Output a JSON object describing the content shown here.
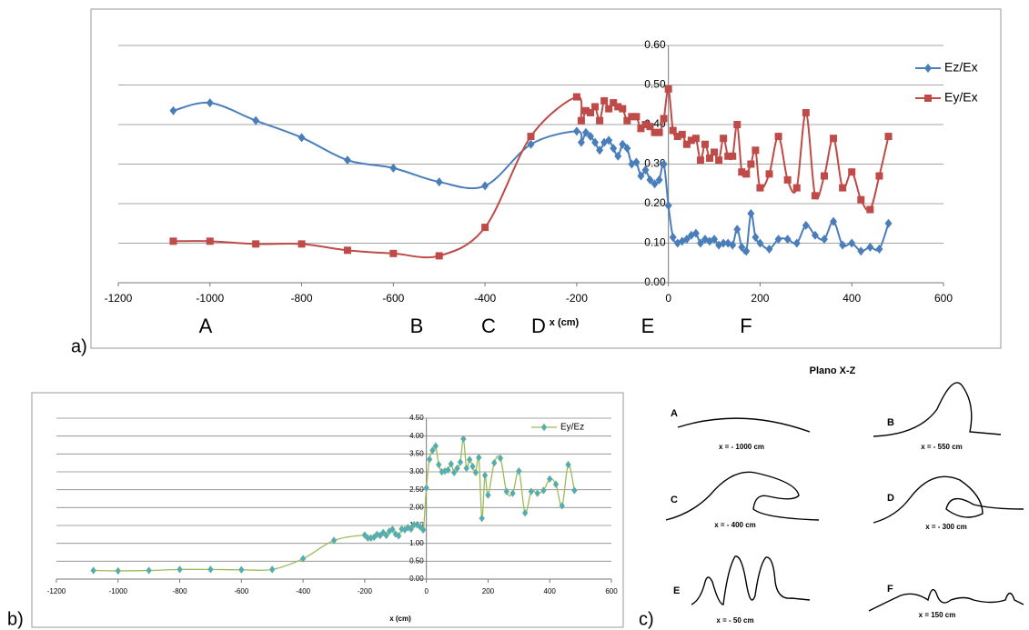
{
  "chart_data": [
    {
      "type": "line",
      "x_label": "x (cm)",
      "x": [
        -1080,
        -1000,
        -900,
        -800,
        -700,
        -600,
        -500,
        -400,
        -300,
        -200,
        -190,
        -180,
        -170,
        -160,
        -150,
        -140,
        -130,
        -120,
        -110,
        -100,
        -90,
        -80,
        -70,
        -60,
        -50,
        -40,
        -30,
        -20,
        -10,
        0,
        10,
        20,
        30,
        40,
        50,
        60,
        70,
        80,
        90,
        100,
        110,
        120,
        130,
        140,
        150,
        160,
        170,
        180,
        190,
        200,
        220,
        240,
        260,
        280,
        300,
        320,
        340,
        360,
        380,
        400,
        420,
        440,
        460,
        480
      ],
      "series": [
        {
          "name": "Ez/Ex",
          "color": "#4a7ebb",
          "marker": "diamond",
          "values": [
            0.435,
            0.455,
            0.41,
            0.367,
            0.31,
            0.29,
            0.255,
            0.245,
            0.35,
            0.383,
            0.355,
            0.38,
            0.37,
            0.355,
            0.335,
            0.355,
            0.36,
            0.34,
            0.32,
            0.35,
            0.34,
            0.3,
            0.305,
            0.27,
            0.285,
            0.26,
            0.25,
            0.26,
            0.3,
            0.195,
            0.115,
            0.1,
            0.105,
            0.11,
            0.12,
            0.125,
            0.1,
            0.11,
            0.105,
            0.11,
            0.095,
            0.1,
            0.1,
            0.095,
            0.135,
            0.09,
            0.08,
            0.175,
            0.115,
            0.1,
            0.085,
            0.11,
            0.11,
            0.1,
            0.145,
            0.12,
            0.11,
            0.155,
            0.095,
            0.1,
            0.08,
            0.09,
            0.085,
            0.15
          ]
        },
        {
          "name": "Ey/Ex",
          "color": "#be4b48",
          "marker": "square",
          "values": [
            0.105,
            0.105,
            0.098,
            0.098,
            0.082,
            0.074,
            0.068,
            0.14,
            0.37,
            0.47,
            0.41,
            0.435,
            0.43,
            0.445,
            0.41,
            0.46,
            0.44,
            0.455,
            0.445,
            0.44,
            0.41,
            0.42,
            0.42,
            0.39,
            0.4,
            0.395,
            0.38,
            0.38,
            0.415,
            0.49,
            0.385,
            0.37,
            0.375,
            0.35,
            0.36,
            0.365,
            0.31,
            0.35,
            0.315,
            0.33,
            0.31,
            0.365,
            0.32,
            0.32,
            0.4,
            0.28,
            0.275,
            0.3,
            0.335,
            0.24,
            0.275,
            0.37,
            0.26,
            0.24,
            0.43,
            0.22,
            0.27,
            0.365,
            0.24,
            0.28,
            0.21,
            0.185,
            0.27,
            0.37
          ]
        }
      ],
      "xlim": [
        -1200,
        600
      ],
      "xticks": [
        -1200,
        -1000,
        -800,
        -600,
        -400,
        -200,
        0,
        200,
        400,
        600
      ],
      "ylim": [
        0,
        0.6
      ],
      "yticks": [
        {
          "value": 0,
          "label": "0.00"
        },
        {
          "value": 0.1,
          "label": "0.10"
        },
        {
          "value": 0.2,
          "label": "0.20"
        },
        {
          "value": 0.3,
          "label": "0.30"
        },
        {
          "value": 0.4,
          "label": "0.40"
        },
        {
          "value": 0.5,
          "label": "0.50"
        },
        {
          "value": 0.6,
          "label": "0.60"
        }
      ],
      "grid": true,
      "legend": "right",
      "annotations": [
        "A",
        "B",
        "C",
        "D",
        "E",
        "F"
      ]
    },
    {
      "type": "line",
      "x_label": "x (cm)",
      "x": [
        -1080,
        -1000,
        -900,
        -800,
        -700,
        -600,
        -500,
        -400,
        -300,
        -200,
        -190,
        -180,
        -170,
        -160,
        -150,
        -140,
        -130,
        -120,
        -110,
        -100,
        -90,
        -80,
        -70,
        -60,
        -50,
        -40,
        -30,
        -20,
        -10,
        0,
        10,
        20,
        30,
        40,
        50,
        60,
        70,
        80,
        90,
        100,
        110,
        120,
        130,
        140,
        150,
        160,
        170,
        180,
        190,
        200,
        220,
        240,
        260,
        280,
        300,
        320,
        340,
        360,
        380,
        400,
        420,
        440,
        460,
        480
      ],
      "series": [
        {
          "name": "Ey/Ez",
          "color": "#9bbb59",
          "marker_color": "#4bacc6",
          "marker": "diamond",
          "values": [
            0.24,
            0.23,
            0.24,
            0.27,
            0.27,
            0.26,
            0.27,
            0.57,
            1.08,
            1.23,
            1.15,
            1.15,
            1.17,
            1.25,
            1.22,
            1.3,
            1.22,
            1.34,
            1.39,
            1.26,
            1.21,
            1.4,
            1.38,
            1.44,
            1.4,
            1.52,
            1.52,
            1.46,
            1.38,
            2.55,
            3.35,
            3.6,
            3.72,
            3.2,
            3.0,
            3.02,
            3.05,
            3.22,
            2.98,
            3.1,
            3.27,
            3.92,
            3.1,
            3.34,
            3.15,
            2.98,
            3.4,
            1.7,
            2.9,
            2.35,
            3.25,
            3.38,
            2.45,
            2.4,
            3.02,
            1.85,
            2.45,
            2.4,
            2.48,
            2.8,
            2.65,
            2.05,
            3.2,
            2.48
          ]
        }
      ],
      "xlim": [
        -1200,
        600
      ],
      "xticks": [
        -1200,
        -1000,
        -800,
        -600,
        -400,
        -200,
        0,
        200,
        400,
        600
      ],
      "ylim": [
        0,
        4.5
      ],
      "yticks": [
        {
          "value": 0,
          "label": "0.00"
        },
        {
          "value": 0.5,
          "label": "0.50"
        },
        {
          "value": 1,
          "label": "1.00"
        },
        {
          "value": 1.5,
          "label": "1.50"
        },
        {
          "value": 2,
          "label": "2.00"
        },
        {
          "value": 2.5,
          "label": "2.50"
        },
        {
          "value": 3,
          "label": "3.00"
        },
        {
          "value": 3.5,
          "label": "3.50"
        },
        {
          "value": 4,
          "label": "4.00"
        },
        {
          "value": 4.5,
          "label": "4.50"
        }
      ],
      "grid": true,
      "legend": "top-right"
    }
  ],
  "panel_labels": [
    "a)",
    "b)",
    "c)"
  ],
  "diagram": {
    "title": "Plano X-Z",
    "items": [
      {
        "letter": "A",
        "caption": "x = - 1000 cm"
      },
      {
        "letter": "B",
        "caption": "x = - 550 cm"
      },
      {
        "letter": "C",
        "caption": "x = - 400 cm"
      },
      {
        "letter": "D",
        "caption": "x = - 300 cm"
      },
      {
        "letter": "E",
        "caption": "x = - 50 cm"
      },
      {
        "letter": "F",
        "caption": "x = 150 cm"
      }
    ]
  }
}
